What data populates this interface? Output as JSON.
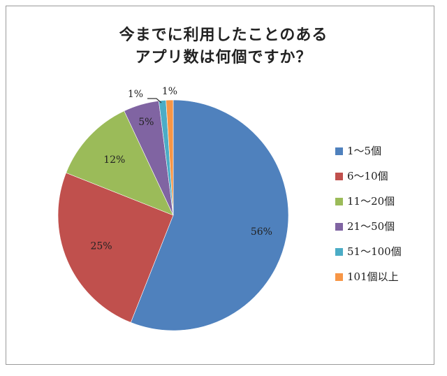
{
  "chart_data": {
    "type": "pie",
    "title_lines": [
      "今までに利用したことのある",
      "アプリ数は何個ですか？"
    ],
    "categories": [
      "1～5個",
      "6～10個",
      "11～20個",
      "21～50個",
      "51～100個",
      "101個以上"
    ],
    "values": [
      56,
      25,
      12,
      5,
      1,
      1
    ],
    "data_labels": [
      "56%",
      "25%",
      "12%",
      "5%",
      "1%",
      "1%"
    ],
    "colors": [
      "#4f81bd",
      "#c0504d",
      "#9bbb59",
      "#8064a2",
      "#4bacc6",
      "#f79646"
    ],
    "legend_position": "right",
    "start_angle": "12 o'clock",
    "direction": "clockwise"
  }
}
